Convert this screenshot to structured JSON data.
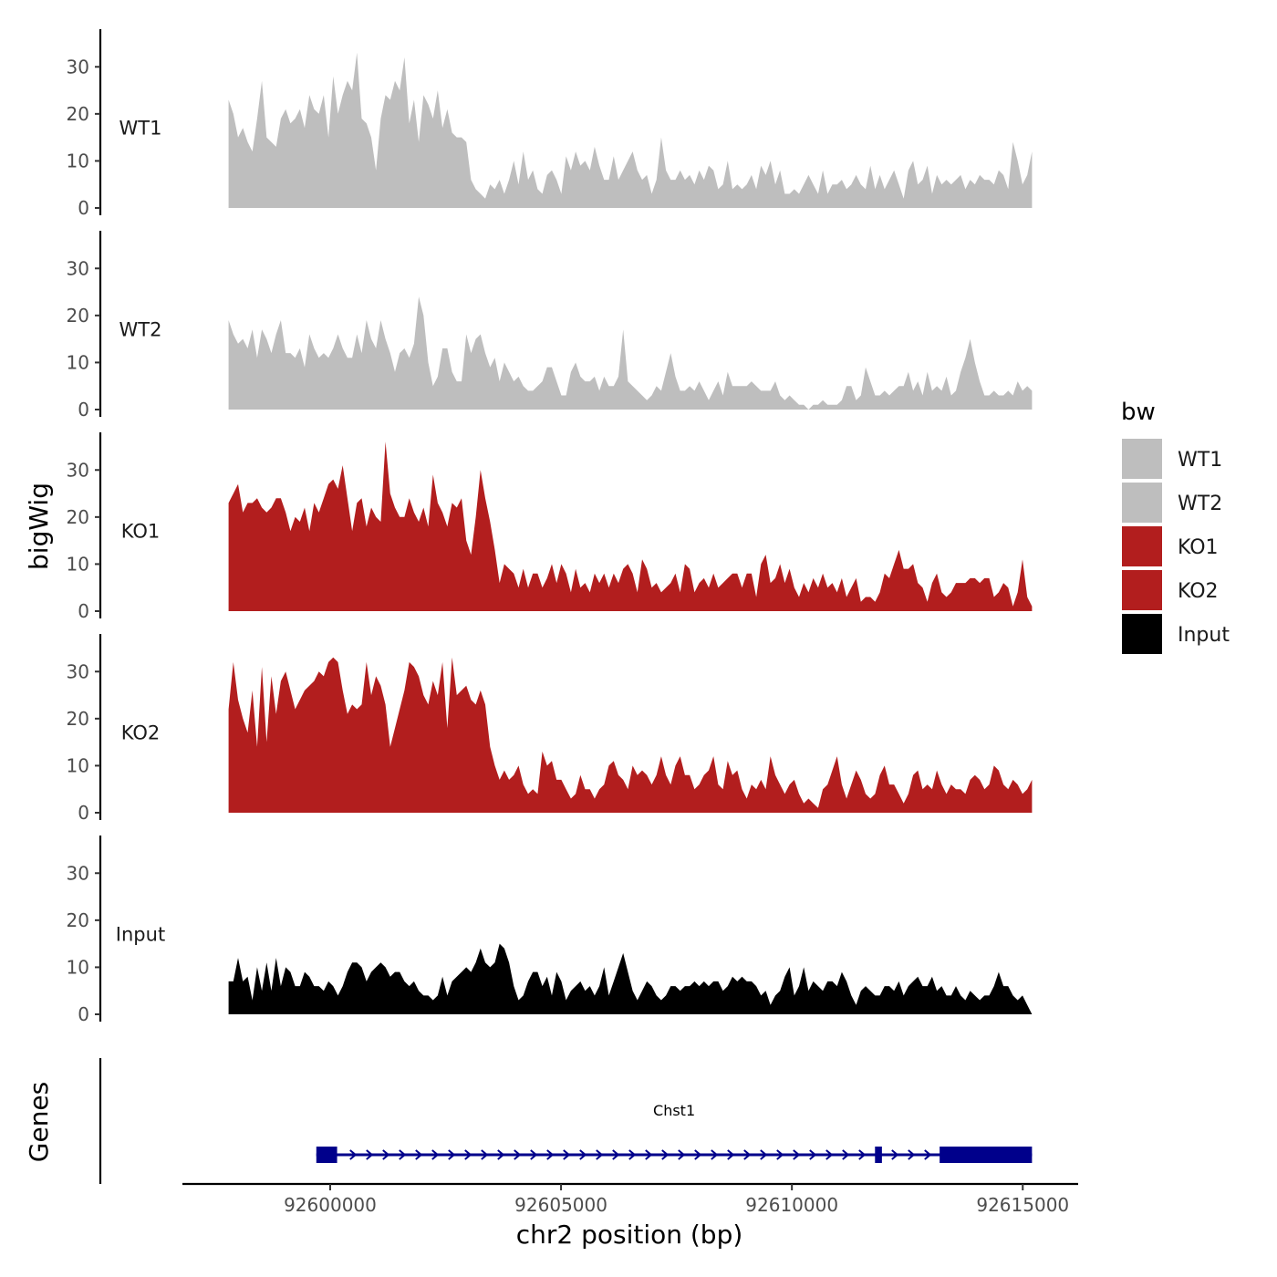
{
  "chart_data": {
    "type": "area",
    "ylabel": "bigWig",
    "genes_label": "Genes",
    "xlabel": "chr2 position (bp)",
    "xlim": [
      92596800,
      92616200
    ],
    "data_x_range": [
      92597800,
      92615200
    ],
    "ylim": [
      0,
      38
    ],
    "y_ticks": [
      0,
      10,
      20,
      30
    ],
    "y_tick_labels": [
      "0",
      "10",
      "20",
      "30"
    ],
    "x_ticks": [
      92600000,
      92605000,
      92610000,
      92615000
    ],
    "x_tick_labels": [
      "92600000",
      "92605000",
      "92610000",
      "92615000"
    ],
    "tracks": [
      {
        "name": "WT1",
        "color": "#bebebe",
        "values": [
          23,
          20,
          15,
          17,
          14,
          12,
          19,
          27,
          15,
          14,
          13,
          19,
          21,
          18,
          19,
          21,
          17,
          24,
          21,
          20,
          24,
          15,
          28,
          20,
          24,
          27,
          25,
          33,
          19,
          18,
          15,
          8,
          19,
          24,
          23,
          27,
          25,
          32,
          18,
          23,
          14,
          24,
          22,
          19,
          25,
          17,
          21,
          16,
          15,
          15,
          14,
          6,
          4,
          3,
          2,
          5,
          4,
          6,
          3,
          6,
          10,
          5,
          12,
          6,
          8,
          4,
          3,
          7,
          8,
          6,
          3,
          11,
          8,
          12,
          9,
          10,
          8,
          13,
          9,
          6,
          6,
          11,
          6,
          8,
          10,
          12,
          8,
          6,
          7,
          3,
          6,
          15,
          8,
          6,
          6,
          8,
          6,
          7,
          5,
          8,
          6,
          9,
          8,
          4,
          5,
          10,
          4,
          5,
          4,
          5,
          7,
          4,
          9,
          7,
          10,
          5,
          8,
          3,
          3,
          4,
          3,
          5,
          7,
          5,
          3,
          8,
          3,
          5,
          5,
          6,
          4,
          5,
          7,
          5,
          4,
          9,
          4,
          7,
          4,
          6,
          8,
          5,
          2,
          8,
          10,
          5,
          6,
          9,
          3,
          7,
          5,
          6,
          5,
          6,
          7,
          4,
          6,
          5,
          7,
          6,
          6,
          5,
          8,
          7,
          4,
          14,
          10,
          5,
          7,
          12
        ]
      },
      {
        "name": "WT2",
        "color": "#bebebe",
        "values": [
          19,
          16,
          14,
          15,
          13,
          17,
          11,
          17,
          15,
          12,
          16,
          19,
          12,
          12,
          11,
          13,
          9,
          16,
          13,
          11,
          12,
          11,
          13,
          16,
          13,
          11,
          11,
          16,
          12,
          19,
          15,
          13,
          19,
          15,
          12,
          8,
          12,
          13,
          11,
          14,
          24,
          20,
          10,
          5,
          7,
          13,
          13,
          8,
          6,
          6,
          16,
          12,
          15,
          16,
          12,
          9,
          11,
          6,
          10,
          8,
          6,
          7,
          5,
          4,
          4,
          5,
          6,
          9,
          9,
          6,
          3,
          3,
          8,
          10,
          7,
          6,
          6,
          7,
          4,
          7,
          5,
          5,
          7,
          17,
          6,
          5,
          4,
          3,
          2,
          3,
          5,
          4,
          8,
          12,
          7,
          4,
          4,
          5,
          4,
          6,
          4,
          2,
          4,
          6,
          3,
          8,
          5,
          5,
          5,
          5,
          6,
          5,
          4,
          4,
          4,
          6,
          3,
          2,
          3,
          2,
          1,
          1,
          0,
          1,
          1,
          2,
          1,
          1,
          1,
          2,
          5,
          5,
          2,
          3,
          9,
          6,
          3,
          3,
          4,
          3,
          4,
          5,
          5,
          8,
          4,
          6,
          3,
          8,
          4,
          5,
          4,
          7,
          3,
          4,
          8,
          11,
          15,
          10,
          6,
          3,
          3,
          4,
          3,
          3,
          4,
          3,
          6,
          4,
          5,
          4
        ]
      },
      {
        "name": "KO1",
        "color": "#b21e1e",
        "values": [
          23,
          25,
          27,
          21,
          23,
          23,
          24,
          22,
          21,
          22,
          24,
          24,
          21,
          17,
          20,
          19,
          22,
          17,
          23,
          21,
          24,
          27,
          28,
          26,
          31,
          24,
          17,
          23,
          24,
          18,
          22,
          20,
          19,
          36,
          25,
          22,
          20,
          20,
          24,
          21,
          19,
          22,
          18,
          29,
          23,
          21,
          18,
          23,
          22,
          24,
          15,
          12,
          20,
          30,
          24,
          19,
          13,
          6,
          10,
          9,
          8,
          5,
          9,
          5,
          8,
          8,
          5,
          7,
          10,
          6,
          10,
          8,
          4,
          9,
          5,
          6,
          4,
          8,
          6,
          8,
          5,
          8,
          6,
          9,
          10,
          8,
          4,
          11,
          9,
          5,
          6,
          4,
          5,
          6,
          8,
          4,
          10,
          9,
          4,
          6,
          7,
          5,
          8,
          5,
          6,
          7,
          8,
          8,
          5,
          8,
          8,
          3,
          10,
          12,
          6,
          7,
          10,
          6,
          9,
          5,
          3,
          6,
          4,
          7,
          5,
          8,
          5,
          6,
          4,
          7,
          3,
          5,
          7,
          2,
          3,
          3,
          2,
          4,
          8,
          7,
          10,
          13,
          9,
          9,
          10,
          6,
          5,
          2,
          6,
          8,
          4,
          3,
          4,
          6,
          6,
          6,
          7,
          7,
          6,
          7,
          7,
          3,
          4,
          6,
          5,
          1,
          4,
          11,
          3,
          1
        ]
      },
      {
        "name": "KO2",
        "color": "#b21e1e",
        "values": [
          22,
          32,
          24,
          20,
          17,
          26,
          14,
          31,
          15,
          29,
          21,
          28,
          30,
          26,
          22,
          24,
          26,
          27,
          28,
          30,
          29,
          32,
          33,
          32,
          26,
          21,
          23,
          22,
          23,
          32,
          25,
          29,
          27,
          23,
          14,
          18,
          22,
          26,
          32,
          31,
          29,
          25,
          23,
          28,
          25,
          32,
          18,
          33,
          25,
          26,
          27,
          24,
          23,
          26,
          23,
          14,
          10,
          7,
          9,
          7,
          8,
          10,
          6,
          4,
          5,
          4,
          13,
          10,
          11,
          7,
          7,
          5,
          3,
          4,
          8,
          5,
          5,
          3,
          5,
          6,
          10,
          11,
          8,
          7,
          5,
          10,
          8,
          9,
          8,
          6,
          8,
          12,
          8,
          6,
          10,
          12,
          8,
          8,
          5,
          6,
          8,
          9,
          12,
          6,
          5,
          11,
          8,
          9,
          5,
          3,
          6,
          5,
          7,
          5,
          12,
          8,
          6,
          4,
          6,
          7,
          4,
          2,
          3,
          2,
          1,
          5,
          6,
          9,
          12,
          6,
          3,
          6,
          9,
          7,
          4,
          3,
          4,
          8,
          10,
          6,
          6,
          4,
          2,
          4,
          8,
          9,
          5,
          6,
          5,
          9,
          6,
          4,
          6,
          5,
          5,
          4,
          7,
          8,
          7,
          5,
          6,
          10,
          9,
          6,
          5,
          7,
          6,
          4,
          5,
          7
        ]
      },
      {
        "name": "Input",
        "color": "#000000",
        "values": [
          7,
          7,
          12,
          7,
          8,
          3,
          10,
          5,
          11,
          5,
          12,
          6,
          10,
          9,
          6,
          6,
          9,
          8,
          6,
          6,
          5,
          7,
          6,
          4,
          6,
          9,
          11,
          11,
          10,
          7,
          9,
          10,
          11,
          10,
          8,
          9,
          9,
          7,
          6,
          7,
          5,
          4,
          4,
          3,
          4,
          8,
          4,
          7,
          8,
          9,
          10,
          9,
          11,
          14,
          11,
          10,
          11,
          15,
          14,
          11,
          6,
          3,
          4,
          7,
          9,
          9,
          6,
          8,
          4,
          9,
          7,
          3,
          5,
          6,
          7,
          5,
          6,
          4,
          6,
          10,
          4,
          7,
          10,
          13,
          9,
          5,
          3,
          5,
          7,
          6,
          4,
          3,
          4,
          6,
          6,
          5,
          6,
          6,
          7,
          6,
          7,
          6,
          7,
          7,
          5,
          6,
          8,
          7,
          8,
          7,
          7,
          6,
          4,
          5,
          2,
          4,
          5,
          8,
          10,
          4,
          6,
          10,
          5,
          7,
          6,
          5,
          7,
          7,
          6,
          9,
          7,
          4,
          2,
          5,
          6,
          5,
          4,
          4,
          6,
          6,
          5,
          7,
          4,
          6,
          7,
          8,
          6,
          6,
          8,
          5,
          6,
          4,
          4,
          6,
          4,
          3,
          5,
          4,
          3,
          4,
          4,
          6,
          9,
          6,
          6,
          4,
          3,
          4,
          2,
          0
        ]
      }
    ],
    "legend": {
      "title": "bw",
      "position": "right",
      "entries": [
        {
          "label": "WT1",
          "color": "#bebebe"
        },
        {
          "label": "WT2",
          "color": "#bebebe"
        },
        {
          "label": "KO1",
          "color": "#b21e1e"
        },
        {
          "label": "KO2",
          "color": "#b21e1e"
        },
        {
          "label": "Input",
          "color": "#000000"
        }
      ]
    },
    "gene": {
      "name": "Chst1",
      "strand": "+",
      "color": "#00008b",
      "start": 92599700,
      "end": 92615200,
      "exons": [
        [
          92599700,
          92600150
        ],
        [
          92611800,
          92611950
        ],
        [
          92613200,
          92615200
        ]
      ]
    }
  }
}
